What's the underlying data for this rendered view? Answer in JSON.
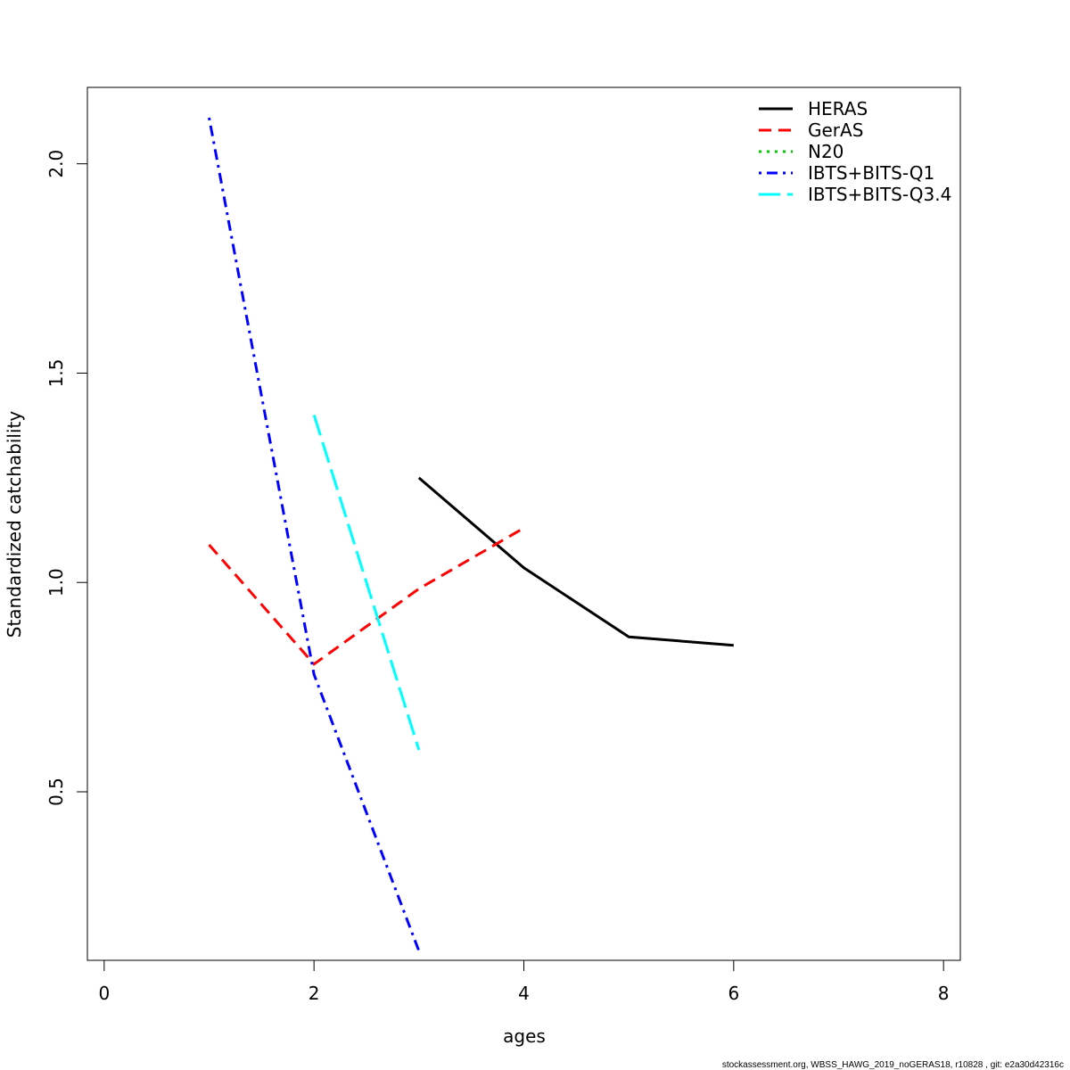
{
  "chart_data": {
    "type": "line",
    "xlabel": "ages",
    "ylabel": "Standardized catchability",
    "xlim": [
      -0.16,
      8.16
    ],
    "ylim": [
      0.0975,
      2.1825
    ],
    "x_ticks": [
      0,
      2,
      4,
      6,
      8
    ],
    "x_tick_labels": [
      "0",
      "2",
      "4",
      "6",
      "8"
    ],
    "y_ticks": [
      0.5,
      1.0,
      1.5,
      2.0
    ],
    "y_tick_labels": [
      "0.5",
      "1.0",
      "1.5",
      "2.0"
    ],
    "grid": false,
    "legend_position": "top-right",
    "series": [
      {
        "name": "HERAS",
        "color": "#000000",
        "style": "solid",
        "x": [
          3,
          4,
          5,
          6
        ],
        "y": [
          1.25,
          1.035,
          0.87,
          0.85
        ]
      },
      {
        "name": "GerAS",
        "color": "#ff0000",
        "style": "dashed",
        "x": [
          1,
          2,
          3,
          4
        ],
        "y": [
          1.09,
          0.805,
          0.985,
          1.13
        ]
      },
      {
        "name": "N20",
        "color": "#00cd00",
        "style": "dotted",
        "x": [],
        "y": []
      },
      {
        "name": "IBTS+BITS-Q1",
        "color": "#0000ff",
        "style": "dotdash",
        "x": [
          1,
          2,
          3
        ],
        "y": [
          2.11,
          0.78,
          0.12
        ]
      },
      {
        "name": "IBTS+BITS-Q3.4",
        "color": "#00ffff",
        "style": "longdash",
        "x": [
          2,
          3
        ],
        "y": [
          1.4,
          0.6
        ]
      }
    ]
  },
  "footer": "stockassessment.org, WBSS_HAWG_2019_noGERAS18, r10828 , git: e2a30d42316c"
}
